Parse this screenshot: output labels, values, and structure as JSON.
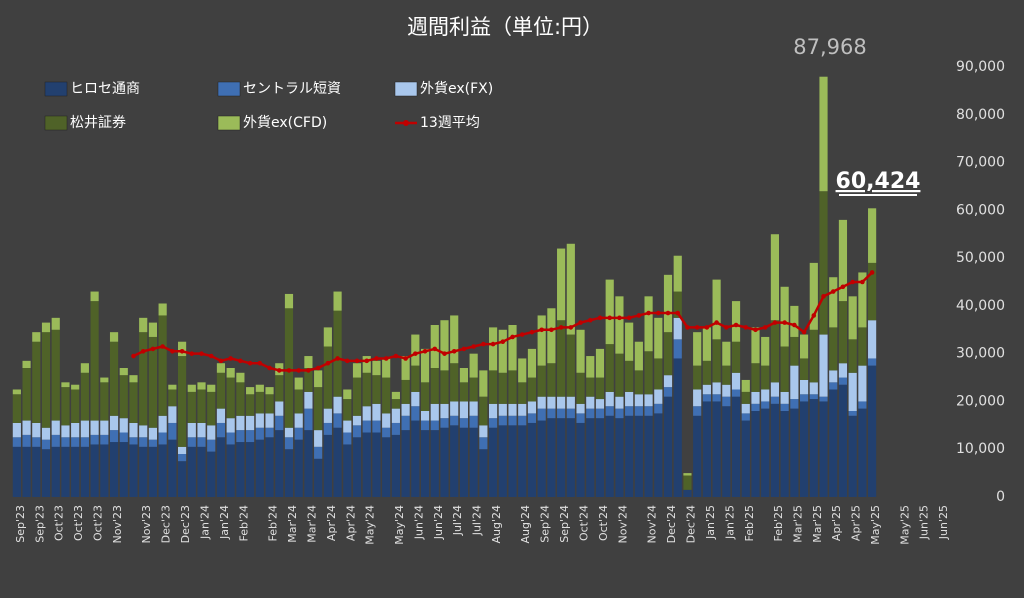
{
  "chart_data": {
    "type": "stacked_bar",
    "title": "週間利益（単位:円）",
    "categories": [
      "Sep'23",
      null,
      "Sep'23",
      null,
      "Oct'23",
      null,
      "Oct'23",
      null,
      "Oct'23",
      null,
      "Nov'23",
      null,
      null,
      "Nov'23",
      null,
      "Dec'23",
      null,
      "Dec'23",
      null,
      "Jan'24",
      null,
      "Jan'24",
      null,
      "Feb'24",
      null,
      null,
      "Feb'24",
      null,
      "Mar'24",
      null,
      "Mar'24",
      null,
      "Apr'24",
      null,
      "Apr'24",
      null,
      "May'24",
      null,
      null,
      "May'24",
      null,
      "Jun'24",
      null,
      "Jun'24",
      null,
      "Jul'24",
      null,
      "Jul'24",
      null,
      "Aug'24",
      null,
      null,
      "Aug'24",
      null,
      "Sep'24",
      null,
      "Sep'24",
      null,
      "Oct'24",
      null,
      "Oct'24",
      null,
      "Nov'24",
      null,
      null,
      "Nov'24",
      null,
      "Dec'24",
      null,
      "Dec'24",
      null,
      "Jan'25",
      null,
      "Jan'25",
      null,
      "Feb'25",
      null,
      null,
      "Feb'25",
      null,
      "Mar'25",
      null,
      "Mar'25",
      null,
      "Apr'25",
      null,
      "Apr'25",
      null,
      "May'25",
      null,
      null,
      "May'25",
      null,
      "Jun'25",
      null,
      "Jun'25"
    ],
    "series": [
      {
        "name": "ヒロセ通商",
        "color": "#22406f",
        "values": [
          10500,
          10500,
          10500,
          10000,
          10500,
          10500,
          10500,
          10500,
          11000,
          11000,
          11500,
          11500,
          11000,
          10500,
          10500,
          11000,
          12000,
          7500,
          10500,
          10500,
          9500,
          12500,
          11000,
          11500,
          11500,
          12000,
          12500,
          14000,
          10000,
          12000,
          14000,
          8000,
          13000,
          14500,
          11000,
          12500,
          13500,
          13500,
          12500,
          13000,
          14000,
          16000,
          14000,
          14000,
          14500,
          15000,
          14500,
          14500,
          10000,
          14500,
          15000,
          15000,
          15000,
          15500,
          16000,
          16500,
          16500,
          16500,
          15500,
          16500,
          16500,
          17000,
          16500,
          17000,
          17000,
          17000,
          17500,
          21000,
          29000,
          1500,
          17000,
          20000,
          20000,
          19000,
          21000,
          16000,
          18000,
          18500,
          19500,
          18000,
          18500,
          20000,
          20500,
          20000,
          22500,
          23500,
          17000,
          18500,
          27500,
          null,
          null,
          null,
          null,
          null,
          null,
          null
        ]
      },
      {
        "name": "セントラル短資",
        "color": "#3f6fb3",
        "values": [
          2000,
          2500,
          2000,
          2000,
          2500,
          2000,
          2000,
          2000,
          2000,
          2000,
          2500,
          2000,
          1500,
          2000,
          1500,
          2500,
          3500,
          1500,
          2000,
          2000,
          2500,
          3000,
          2500,
          2500,
          2500,
          2500,
          2000,
          3000,
          2500,
          2500,
          4500,
          2500,
          2500,
          3000,
          2500,
          2500,
          2500,
          2500,
          2000,
          2500,
          3000,
          3000,
          2000,
          2000,
          2000,
          2000,
          2000,
          2500,
          2500,
          2000,
          2000,
          2000,
          2000,
          2000,
          2500,
          2000,
          2000,
          2000,
          2000,
          2000,
          2000,
          2000,
          2000,
          2000,
          2000,
          2000,
          2000,
          2000,
          4000,
          0,
          2000,
          1500,
          1500,
          2000,
          1500,
          1500,
          1500,
          1500,
          1500,
          1500,
          2000,
          1500,
          1000,
          1000,
          1500,
          1500,
          1000,
          1500,
          1500,
          null,
          null,
          null,
          null,
          null,
          null,
          null
        ]
      },
      {
        "name": "外貨ex(FX)",
        "color": "#a9c7ec",
        "values": [
          3000,
          3000,
          3000,
          2500,
          3000,
          2500,
          3000,
          3500,
          3000,
          3000,
          3000,
          3000,
          3000,
          2500,
          2500,
          3500,
          3500,
          1500,
          3000,
          3000,
          3000,
          3000,
          3000,
          3000,
          3000,
          3000,
          3000,
          3000,
          2000,
          3000,
          3500,
          3500,
          3000,
          3500,
          2500,
          2000,
          3000,
          3500,
          3000,
          3000,
          2500,
          3000,
          2000,
          3500,
          3000,
          3000,
          3500,
          3000,
          2500,
          3000,
          2500,
          2500,
          2500,
          2500,
          2500,
          2500,
          2500,
          2500,
          2000,
          2500,
          2000,
          3000,
          2500,
          3000,
          2500,
          2500,
          3000,
          2500,
          4500,
          0,
          3500,
          2000,
          2500,
          2500,
          3500,
          2000,
          2500,
          2500,
          3000,
          2500,
          7000,
          3000,
          2500,
          13000,
          2500,
          3000,
          8000,
          7500,
          8000,
          null,
          null,
          null,
          null,
          null,
          null,
          null
        ]
      },
      {
        "name": "松井証券",
        "color": "#4f6228",
        "values": [
          6000,
          11000,
          17000,
          20000,
          19000,
          8000,
          7000,
          10000,
          25000,
          8000,
          15500,
          9000,
          8500,
          19500,
          19000,
          21000,
          3500,
          19000,
          6500,
          7000,
          7000,
          7500,
          8500,
          7000,
          4500,
          4500,
          4000,
          5500,
          25000,
          5000,
          5000,
          9000,
          13000,
          18000,
          4500,
          8000,
          7000,
          6000,
          7500,
          2000,
          5000,
          5500,
          6000,
          7500,
          7000,
          8000,
          4000,
          5000,
          6000,
          7000,
          6500,
          7000,
          4500,
          5000,
          6500,
          7000,
          16000,
          13000,
          6500,
          4000,
          4500,
          10000,
          9000,
          6500,
          5000,
          9000,
          6500,
          9000,
          5500,
          3000,
          5000,
          5000,
          9000,
          4000,
          6500,
          2500,
          6000,
          5000,
          13000,
          9500,
          6000,
          4500,
          11000,
          30000,
          9000,
          13000,
          7000,
          8000,
          12000,
          null,
          null,
          null,
          null,
          null,
          null,
          null
        ]
      },
      {
        "name": "外貨ex(CFD)",
        "color": "#9bbb59",
        "values": [
          1000,
          1500,
          2000,
          2000,
          2500,
          1000,
          1000,
          2000,
          2000,
          1000,
          2000,
          1500,
          1500,
          3000,
          3000,
          2500,
          1000,
          3000,
          1500,
          1500,
          1500,
          2000,
          2000,
          2000,
          1500,
          1500,
          1500,
          2500,
          3000,
          2500,
          2500,
          3500,
          4000,
          4000,
          2000,
          3000,
          3500,
          3000,
          4000,
          1500,
          5000,
          6500,
          7000,
          9000,
          10500,
          10000,
          3000,
          5000,
          5500,
          9000,
          9000,
          9500,
          5000,
          6000,
          10500,
          11500,
          15000,
          19000,
          9000,
          4500,
          6000,
          13500,
          12000,
          8000,
          6000,
          11500,
          8500,
          12000,
          7500,
          500,
          7000,
          7000,
          12500,
          5000,
          8500,
          2500,
          7500,
          6000,
          18000,
          12500,
          6500,
          5000,
          14000,
          23968,
          10500,
          17000,
          9000,
          11500,
          11424,
          null,
          null,
          null,
          null,
          null,
          null,
          null
        ]
      },
      {
        "name": "13週平均",
        "color": "#c00000",
        "kind": "line",
        "values": [
          null,
          null,
          null,
          null,
          null,
          null,
          null,
          null,
          null,
          null,
          null,
          null,
          29500,
          30500,
          31000,
          31500,
          30500,
          30500,
          30000,
          30000,
          29500,
          28500,
          29000,
          28500,
          28000,
          28000,
          27000,
          26500,
          26500,
          26500,
          26500,
          27000,
          28000,
          29000,
          28500,
          28500,
          28500,
          29000,
          29000,
          29500,
          29000,
          30000,
          30500,
          31000,
          30000,
          30500,
          31000,
          31500,
          32000,
          32000,
          32500,
          33500,
          34000,
          34500,
          35000,
          35000,
          35500,
          35500,
          36500,
          37000,
          37500,
          37500,
          37500,
          37500,
          38000,
          38500,
          38500,
          38500,
          38500,
          35500,
          35500,
          35500,
          36500,
          35500,
          36000,
          35500,
          35000,
          35500,
          36500,
          36500,
          36000,
          34500,
          38000,
          42000,
          43000,
          44000,
          45000,
          45000,
          47000,
          null,
          null,
          null,
          null,
          null,
          null,
          null
        ]
      }
    ],
    "annotations": [
      "87,968",
      "60,424"
    ],
    "ylim": [
      0,
      90000
    ],
    "yticks": [
      0,
      {
        "value": 10000,
        "label": "10,000"
      },
      {
        "value": 20000,
        "label": "20,000"
      },
      {
        "value": 30000,
        "label": "30,000"
      },
      {
        "value": 40000,
        "label": "40,000"
      },
      {
        "value": 50000,
        "label": "50,000"
      },
      {
        "value": 60000,
        "label": "60,000"
      },
      {
        "value": 70000,
        "label": "70,000"
      },
      {
        "value": 80000,
        "label": "80,000"
      },
      {
        "value": 90000,
        "label": "90,000"
      }
    ],
    "grid": false,
    "legend": "top-left"
  }
}
